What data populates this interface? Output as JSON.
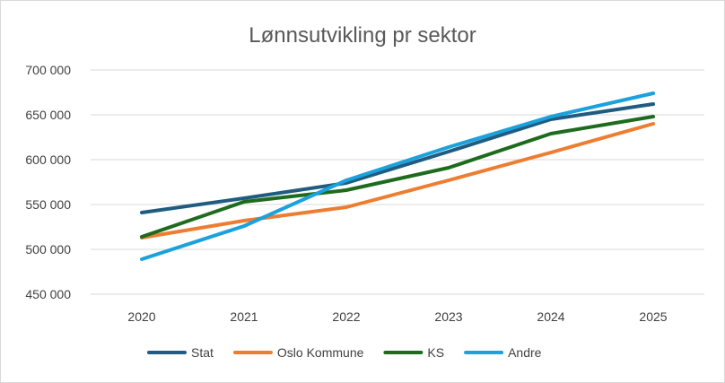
{
  "chart_data": {
    "type": "line",
    "title": "Lønnsutvikling pr sektor",
    "xlabel": "",
    "ylabel": "",
    "categories": [
      "2020",
      "2021",
      "2022",
      "2023",
      "2024",
      "2025"
    ],
    "y_ticks": [
      450000,
      500000,
      550000,
      600000,
      650000,
      700000
    ],
    "y_tick_labels": [
      "450 000",
      "500 000",
      "550 000",
      "600 000",
      "650 000",
      "700 000"
    ],
    "ylim": [
      450000,
      700000
    ],
    "grid": true,
    "legend_position": "bottom",
    "series": [
      {
        "name": "Stat",
        "color": "#1f5c80",
        "values": [
          541000,
          557000,
          574000,
          609000,
          645000,
          662000
        ]
      },
      {
        "name": "Oslo Kommune",
        "color": "#ed7d31",
        "values": [
          513000,
          532000,
          547000,
          577000,
          608000,
          640000
        ]
      },
      {
        "name": "KS",
        "color": "#1e6b1e",
        "values": [
          514000,
          553000,
          566000,
          591000,
          629000,
          648000
        ]
      },
      {
        "name": "Andre",
        "color": "#1ba1dc",
        "values": [
          489000,
          526000,
          577000,
          614000,
          648000,
          674000
        ]
      }
    ]
  }
}
